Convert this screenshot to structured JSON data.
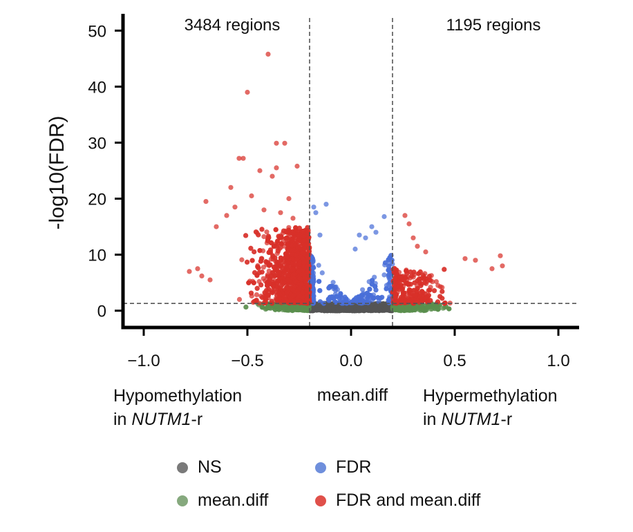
{
  "chart_data": {
    "type": "scatter",
    "subtype": "volcano",
    "ylabel": "-log10(FDR)",
    "xlabel": "mean.diff",
    "xlim": [
      -1.1,
      1.1
    ],
    "ylim": [
      -3,
      53
    ],
    "x_ticks": [
      -1.0,
      -0.5,
      0.0,
      0.5,
      1.0
    ],
    "x_tick_labels": [
      "−1.0",
      "−0.5",
      "0.0",
      "0.5",
      "1.0"
    ],
    "y_ticks": [
      0,
      10,
      20,
      30,
      40,
      50
    ],
    "y_tick_labels": [
      "0",
      "10",
      "20",
      "30",
      "40",
      "50"
    ],
    "thresholds": {
      "mean_diff": [
        -0.2,
        0.2
      ],
      "neg_log10_fdr": 1.3
    },
    "annotations": {
      "left_count": "3484 regions",
      "right_count": "1195 regions"
    },
    "direction_labels": {
      "left_line1": "Hypomethylation",
      "left_line2_prefix": "in ",
      "left_line2_gene": "NUTM1",
      "left_line2_suffix": "-r",
      "right_line1": "Hypermethylation",
      "right_line2_prefix": "in ",
      "right_line2_gene": "NUTM1",
      "right_line2_suffix": "-r"
    },
    "legend": [
      {
        "key": "NS",
        "label": "NS",
        "color": "#7a7a7a"
      },
      {
        "key": "FDR",
        "label": "FDR",
        "color": "#6f8fdc"
      },
      {
        "key": "mean_diff",
        "label": "mean.diff",
        "color": "#86a97e"
      },
      {
        "key": "both",
        "label": "FDR and mean.diff",
        "color": "#e0504a"
      }
    ],
    "series_colors": {
      "NS": "#555555",
      "FDR": "#4a6fd8",
      "mean_diff": "#5a8f4e",
      "both": "#d8302a"
    },
    "outlier_points": [
      [
        -0.4,
        45.8
      ],
      [
        -0.5,
        39.0
      ],
      [
        -0.36,
        29.9
      ],
      [
        -0.32,
        29.9
      ],
      [
        -0.54,
        27.2
      ],
      [
        -0.52,
        27.2
      ],
      [
        -0.26,
        25.8
      ],
      [
        -0.38,
        24.0
      ],
      [
        -0.44,
        25.0
      ],
      [
        -0.36,
        25.5
      ],
      [
        -0.7,
        19.5
      ],
      [
        -0.58,
        22.0
      ],
      [
        -0.48,
        20.5
      ],
      [
        -0.56,
        18.5
      ],
      [
        -0.3,
        20.0
      ],
      [
        -0.42,
        18.0
      ],
      [
        -0.6,
        17.0
      ],
      [
        -0.65,
        15.0
      ],
      [
        -0.28,
        16.5
      ],
      [
        -0.34,
        17.5
      ],
      [
        -0.78,
        7.0
      ],
      [
        -0.74,
        7.5
      ],
      [
        -0.72,
        6.2
      ],
      [
        -0.68,
        5.5
      ],
      [
        -0.18,
        18.5
      ],
      [
        -0.12,
        19.0
      ],
      [
        -0.17,
        17.5
      ],
      [
        0.1,
        15.0
      ],
      [
        0.04,
        13.5
      ],
      [
        0.07,
        13.0
      ],
      [
        0.16,
        16.8
      ],
      [
        0.12,
        14.0
      ],
      [
        -0.15,
        13.5
      ],
      [
        0.02,
        11.0
      ],
      [
        0.26,
        17.0
      ],
      [
        0.28,
        15.5
      ],
      [
        0.3,
        13.0
      ],
      [
        0.32,
        11.5
      ],
      [
        0.36,
        10.5
      ],
      [
        0.55,
        9.3
      ],
      [
        0.6,
        9.0
      ],
      [
        0.72,
        9.8
      ],
      [
        0.73,
        8.0
      ],
      [
        0.68,
        7.5
      ]
    ]
  }
}
